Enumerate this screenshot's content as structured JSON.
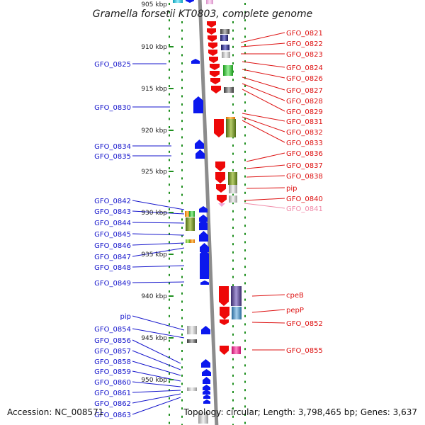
{
  "title": "Gramella forsetii KT0803, complete genome",
  "top_ruler_partial": "905 kbp",
  "ruler": [
    "910 kbp",
    "915 kbp",
    "920 kbp",
    "925 kbp",
    "930 kbp",
    "935 kbp",
    "940 kbp",
    "945 kbp",
    "950 kbp"
  ],
  "left_labels": [
    "GFO_0825",
    "GFO_0830",
    "GFO_0834",
    "GFO_0835",
    "GFO_0842",
    "GFO_0843",
    "GFO_0844",
    "GFO_0845",
    "GFO_0846",
    "GFO_0847",
    "GFO_0848",
    "GFO_0849",
    "pip",
    "GFO_0854",
    "GFO_0856",
    "GFO_0857",
    "GFO_0858",
    "GFO_0859",
    "GFO_0860",
    "GFO_0861",
    "GFO_0862",
    "GFO_0863"
  ],
  "right_labels": [
    "GFO_0821",
    "GFO_0822",
    "GFO_0823",
    "GFO_0824",
    "GFO_0826",
    "GFO_0827",
    "GFO_0828",
    "GFO_0829",
    "GFO_0831",
    "GFO_0832",
    "GFO_0833",
    "GFO_0836",
    "GFO_0837",
    "GFO_0838",
    "pip",
    "GFO_0840",
    "GFO_0841",
    "cpeB",
    "pepP",
    "GFO_0852",
    "GFO_0855"
  ],
  "footer": {
    "accession": "Accession: NC_008571",
    "stats": "Topology: circular; Length: 3,798,465 bp; Genes: 3,637"
  },
  "colors": {
    "left_label": "#1515cc",
    "right_label": "#dd1111",
    "faded_label": "#f08aa8",
    "forward_gene": "#0b18ee",
    "reverse_gene": "#ee0808",
    "ruler_dots": "#1e8f1e",
    "backbone": "#8c8c8c"
  }
}
